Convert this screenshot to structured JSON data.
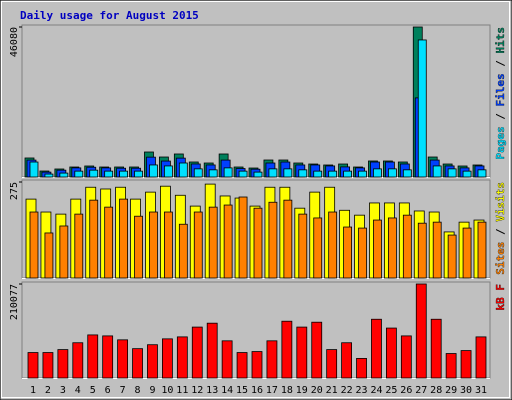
{
  "title": "Daily usage for August 2015",
  "chart_data": [
    {
      "type": "bar",
      "ylim": [
        0,
        46080
      ],
      "yticks": [
        46080
      ],
      "legend_separator": " / ",
      "series": [
        {
          "name": "Hits",
          "color": "#00805c",
          "values": [
            5840,
            1840,
            2460,
            3070,
            3380,
            3070,
            3070,
            3070,
            7680,
            6140,
            7070,
            4610,
            4300,
            7070,
            3070,
            2760,
            5220,
            5220,
            4300,
            3990,
            3690,
            3990,
            3070,
            4920,
            4920,
            4610,
            46080,
            6140,
            3990,
            3380,
            3690
          ]
        },
        {
          "name": "Files",
          "color": "#0040ff",
          "values": [
            5200,
            1500,
            2100,
            2800,
            3000,
            2800,
            2700,
            2700,
            6100,
            4900,
            5800,
            4000,
            3700,
            5200,
            2600,
            2400,
            4300,
            4600,
            3700,
            3700,
            3400,
            3100,
            2800,
            4600,
            4600,
            4000,
            24300,
            5200,
            3400,
            2800,
            3400
          ]
        },
        {
          "name": "Pages",
          "color": "#00e0ff",
          "values": [
            4600,
            900,
            1200,
            1800,
            2100,
            1800,
            1800,
            1800,
            3700,
            3400,
            4300,
            2500,
            2200,
            2800,
            1800,
            1500,
            2500,
            2500,
            2200,
            1800,
            1800,
            1800,
            1800,
            2500,
            2500,
            2200,
            42100,
            3400,
            2500,
            1800,
            2200
          ]
        }
      ]
    },
    {
      "type": "bar",
      "ylim": [
        0,
        275
      ],
      "yticks": [
        275
      ],
      "legend_separator": " / ",
      "series": [
        {
          "name": "Visits",
          "color": "#ffff00",
          "values": [
            226,
            189,
            183,
            226,
            260,
            255,
            260,
            226,
            246,
            263,
            237,
            206,
            269,
            235,
            229,
            206,
            260,
            260,
            200,
            246,
            260,
            194,
            180,
            215,
            215,
            215,
            192,
            189,
            132,
            160,
            166
          ]
        },
        {
          "name": "Sites",
          "color": "#ff8000",
          "values": [
            189,
            129,
            149,
            183,
            223,
            203,
            226,
            177,
            189,
            189,
            154,
            189,
            203,
            209,
            232,
            200,
            217,
            223,
            183,
            172,
            189,
            146,
            143,
            166,
            172,
            180,
            157,
            160,
            123,
            143,
            160
          ]
        }
      ]
    },
    {
      "type": "bar",
      "ylim": [
        0,
        210077
      ],
      "yticks": [
        210077
      ],
      "categories": [
        "1",
        "2",
        "3",
        "4",
        "5",
        "6",
        "7",
        "8",
        "9",
        "10",
        "11",
        "12",
        "13",
        "14",
        "15",
        "16",
        "17",
        "18",
        "19",
        "20",
        "21",
        "22",
        "23",
        "24",
        "25",
        "26",
        "27",
        "28",
        "29",
        "30",
        "31"
      ],
      "label_colors": [
        "#008040",
        "#008040",
        "#000080",
        "#000080",
        "#000080",
        "#000080",
        "#000080",
        "#008040",
        "#008040",
        "#000080",
        "#000080",
        "#000080",
        "#000080",
        "#000080",
        "#008040",
        "#008040",
        "#000080",
        "#000080",
        "#000080",
        "#000080",
        "#000080",
        "#008040",
        "#008040",
        "#000080",
        "#000080",
        "#000080",
        "#000080",
        "#000080",
        "#008040",
        "#008040",
        "#000080"
      ],
      "series": [
        {
          "name": "kB F",
          "color": "#ff0000",
          "values": [
            56900,
            56900,
            63500,
            78800,
            96300,
            94100,
            85300,
            65600,
            74400,
            87500,
            91900,
            113800,
            122500,
            83100,
            56900,
            59100,
            83100,
            126900,
            113800,
            124700,
            63500,
            78800,
            43800,
            131300,
            111600,
            94100,
            210077,
            131300,
            54700,
            61300,
            91900
          ]
        }
      ]
    }
  ]
}
